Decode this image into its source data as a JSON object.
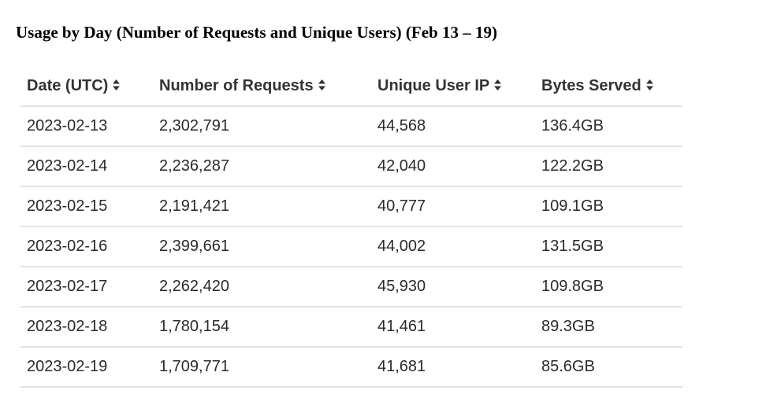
{
  "page": {
    "title": "Usage by Day (Number of Requests and Unique Users) (Feb 13 – 19)"
  },
  "chart_data": {
    "type": "table",
    "columns": [
      {
        "label": "Date (UTC)",
        "sort_icon": "sort-icon"
      },
      {
        "label": "Number of Requests",
        "sort_icon": "sort-icon"
      },
      {
        "label": "Unique User IP",
        "sort_icon": "sort-icon"
      },
      {
        "label": "Bytes Served",
        "sort_icon": "sort-icon"
      }
    ],
    "rows": [
      [
        "2023-02-13",
        "2,302,791",
        "44,568",
        "136.4GB"
      ],
      [
        "2023-02-14",
        "2,236,287",
        "42,040",
        "122.2GB"
      ],
      [
        "2023-02-15",
        "2,191,421",
        "40,777",
        "109.1GB"
      ],
      [
        "2023-02-16",
        "2,399,661",
        "44,002",
        "131.5GB"
      ],
      [
        "2023-02-17",
        "2,262,420",
        "45,930",
        "109.8GB"
      ],
      [
        "2023-02-18",
        "1,780,154",
        "41,461",
        "89.3GB"
      ],
      [
        "2023-02-19",
        "1,709,771",
        "41,681",
        "85.6GB"
      ]
    ]
  },
  "colors": {
    "header_text": "#333333",
    "cell_text": "#2a2a2a",
    "row_divider": "#e2e2e6",
    "sort_icon": "#333333"
  }
}
